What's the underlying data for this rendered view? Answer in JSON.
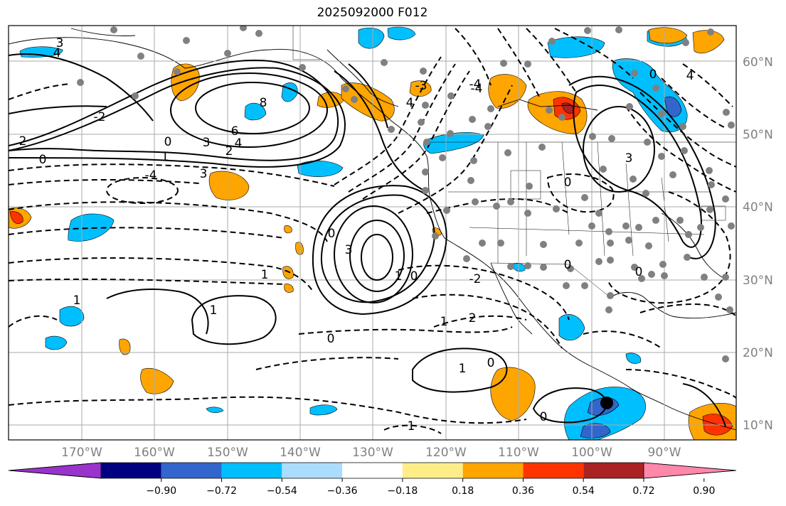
{
  "title": "2025092000 F012",
  "lon_labels": [
    "170°W",
    "160°W",
    "150°W",
    "140°W",
    "130°W",
    "120°W",
    "110°W",
    "100°W",
    "90°W"
  ],
  "lat_labels": [
    "60°N",
    "50°N",
    "40°N",
    "30°N",
    "20°N",
    "10°N"
  ],
  "contour_labels": [
    "3",
    "4",
    "2",
    "0",
    "8",
    "6",
    "4",
    "2",
    "3",
    "0",
    "1",
    "3",
    "-4",
    "-2",
    "0",
    "3",
    "1",
    "-4",
    "4",
    "4",
    "0",
    "3",
    "0",
    "1",
    "1",
    "0",
    "1",
    "0",
    "0",
    "2",
    "1",
    "1",
    "0",
    "-2",
    "0",
    "1",
    "0",
    "-4",
    "-3"
  ],
  "colorbar": {
    "colors": [
      "#9933cc",
      "#000080",
      "#3366cc",
      "#00bfff",
      "#aaddff",
      "#ffffff",
      "#ffee88",
      "#ffa500",
      "#ff3300",
      "#aa2222",
      "#ff88aa"
    ],
    "ticks": [
      "−0.90",
      "−0.72",
      "−0.54",
      "−0.36",
      "−0.18",
      "0.18",
      "0.36",
      "0.54",
      "0.72",
      "0.90"
    ]
  }
}
